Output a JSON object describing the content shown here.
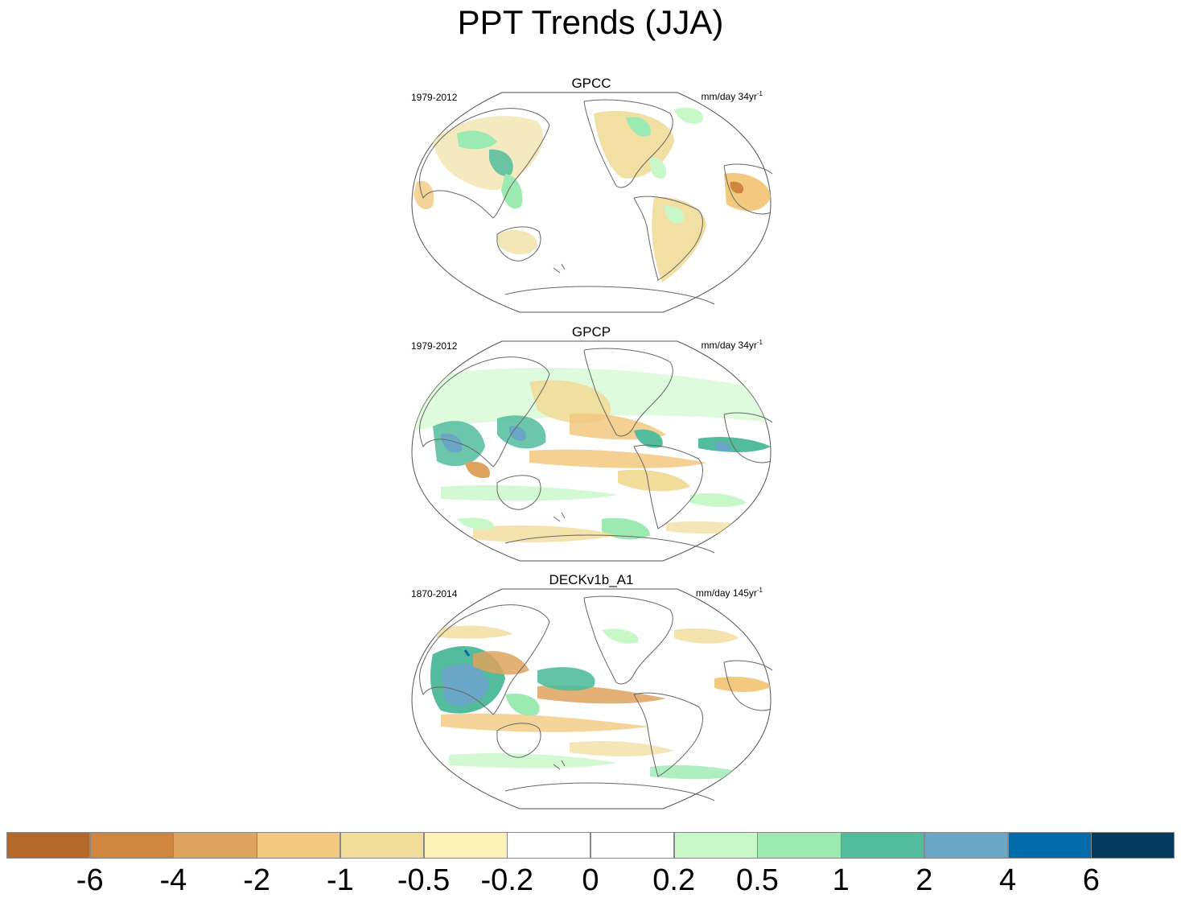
{
  "title": "PPT Trends (JJA)",
  "panels": [
    {
      "title": "GPCC",
      "period": "1979-2012",
      "units": "mm/day 34yr",
      "units_exp": "-1"
    },
    {
      "title": "GPCP",
      "period": "1979-2012",
      "units": "mm/day 34yr",
      "units_exp": "-1"
    },
    {
      "title": "DECKv1b_A1",
      "period": "1870-2014",
      "units": "mm/day 145yr",
      "units_exp": "-1"
    }
  ],
  "colorbar": {
    "colors": [
      "#b4692a",
      "#cd853f",
      "#dea35e",
      "#f2c97f",
      "#f1dc9a",
      "#fdf3b9",
      "#ffffff",
      "#ffffff",
      "#c8f8c8",
      "#9aeab2",
      "#52bc9c",
      "#6aa7c6",
      "#046bab",
      "#033a5e"
    ],
    "labels": [
      "-6",
      "-4",
      "-2",
      "-1",
      "-0.5",
      "-0.2",
      "0",
      "0.2",
      "0.5",
      "1",
      "2",
      "4",
      "6"
    ]
  }
}
